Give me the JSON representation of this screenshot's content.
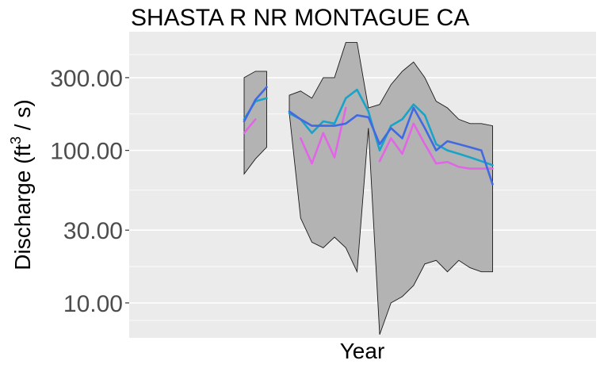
{
  "chart_data": {
    "type": "line",
    "title": "SHASTA R NR MONTAGUE CA",
    "xlabel": "Year",
    "ylabel": "Discharge (ft^3 / s)",
    "ylabel_parts": {
      "main": "Discharge (ft",
      "sup": "3",
      "tail": " / s)"
    },
    "y_scale": "log",
    "ylim": [
      5.9,
      600
    ],
    "yticks": [
      10,
      30,
      100,
      300
    ],
    "ytick_labels": [
      "10.00",
      "30.00",
      "100.00",
      "300.00"
    ],
    "x_tick_labels_shown": false,
    "grid": true,
    "legend": "none",
    "n_points": 23,
    "band": {
      "segments": [
        {
          "indices": [
            0,
            1,
            2
          ],
          "upper": [
            300,
            330,
            330
          ],
          "lower": [
            70,
            88,
            105
          ]
        },
        {
          "indices": [
            4,
            5,
            6,
            7,
            8,
            9,
            10,
            11,
            12,
            13,
            14,
            15,
            16,
            17,
            18,
            19,
            20,
            21,
            22
          ],
          "upper": [
            230,
            245,
            220,
            300,
            300,
            510,
            510,
            190,
            200,
            270,
            330,
            380,
            300,
            210,
            190,
            160,
            150,
            150,
            145
          ],
          "lower": [
            175,
            36,
            25,
            23,
            27,
            23,
            16,
            140,
            6.2,
            10,
            11,
            13,
            18,
            19,
            16,
            19,
            17,
            16,
            16
          ]
        }
      ]
    },
    "series": [
      {
        "color": "#e066e6",
        "segments": [
          {
            "indices": [
              0,
              1
            ],
            "values": [
              130,
              160
            ]
          },
          {
            "indices": [
              5,
              6,
              7,
              8,
              9
            ],
            "values": [
              120,
              82,
              130,
              90,
              190
            ]
          },
          {
            "indices": [
              12,
              13,
              14,
              15,
              16,
              17,
              18,
              19,
              20,
              21,
              22
            ],
            "values": [
              85,
              120,
              95,
              150,
              110,
              82,
              84,
              78,
              76,
              76,
              76
            ]
          }
        ]
      },
      {
        "color": "#1aa3c9",
        "segments": [
          {
            "indices": [
              0,
              1,
              2
            ],
            "values": [
              160,
              210,
              220
            ]
          },
          {
            "indices": [
              4,
              5,
              6,
              7,
              8,
              9,
              10,
              11,
              12,
              13,
              14,
              15,
              16,
              17,
              18,
              19,
              20,
              21,
              22
            ],
            "values": [
              175,
              160,
              130,
              155,
              150,
              220,
              250,
              180,
              100,
              145,
              160,
              200,
              170,
              110,
              100,
              95,
              90,
              85,
              80
            ]
          }
        ]
      },
      {
        "color": "#4169e1",
        "segments": [
          {
            "indices": [
              0,
              1,
              2
            ],
            "values": [
              155,
              215,
              260
            ]
          },
          {
            "indices": [
              4,
              5,
              6,
              7,
              8,
              9,
              10,
              11,
              12,
              13,
              14,
              15,
              16,
              17,
              18,
              19,
              20,
              21,
              22
            ],
            "values": [
              180,
              160,
              145,
              145,
              145,
              150,
              170,
              165,
              110,
              140,
              120,
              190,
              140,
              100,
              115,
              110,
              105,
              100,
              60
            ]
          }
        ]
      }
    ]
  }
}
